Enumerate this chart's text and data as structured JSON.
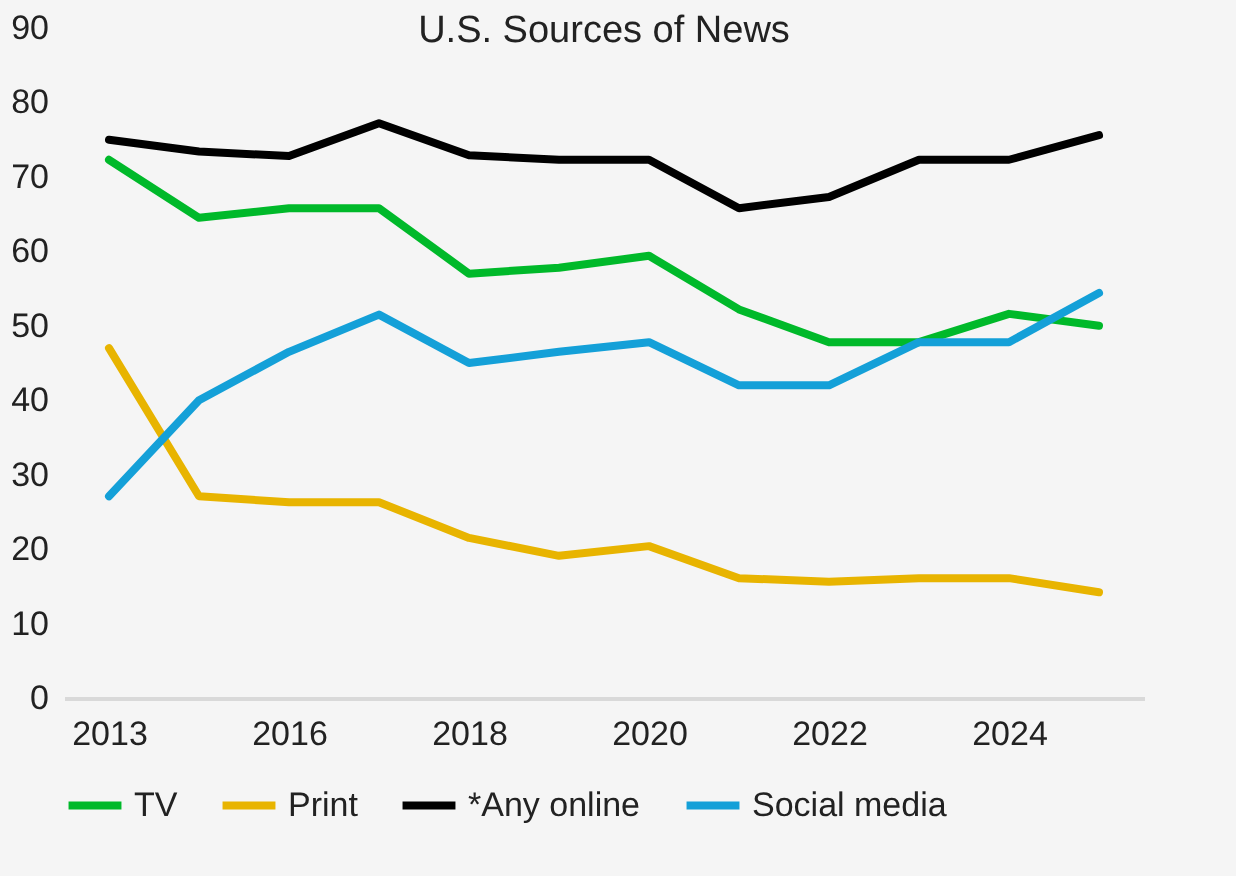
{
  "chart_data": {
    "type": "line",
    "title": "U.S. Sources of News",
    "categories": [
      "2013",
      null,
      "2016",
      null,
      "2018",
      null,
      "2020",
      null,
      "2022",
      null,
      "2024",
      null
    ],
    "series": [
      {
        "name": "TV",
        "color": "#00b92a",
        "values": [
          72.3,
          64.5,
          65.8,
          65.8,
          57,
          57.8,
          59.4,
          52.2,
          47.8,
          47.8,
          51.6,
          50
        ]
      },
      {
        "name": "Print",
        "color": "#e8b400",
        "values": [
          47,
          27.1,
          26.3,
          26.3,
          21.5,
          19.1,
          20.4,
          16.1,
          15.6,
          16.1,
          16.1,
          14.2
        ]
      },
      {
        "name": "*Any online",
        "color": "#000000",
        "values": [
          75,
          73.4,
          72.8,
          77.2,
          72.9,
          72.3,
          72.3,
          65.8,
          67.3,
          72.3,
          72.3,
          75.6
        ]
      },
      {
        "name": "Social media",
        "color": "#14a0d8",
        "values": [
          27.1,
          40,
          46.5,
          51.5,
          45,
          46.5,
          47.8,
          42,
          42,
          47.8,
          47.8,
          54.4
        ]
      }
    ],
    "ylim": [
      0,
      90
    ],
    "yticks": [
      0,
      10,
      20,
      30,
      40,
      50,
      60,
      70,
      80,
      90
    ],
    "grid": false,
    "legend": "bottom",
    "marker": "none",
    "line_style": "solid"
  }
}
